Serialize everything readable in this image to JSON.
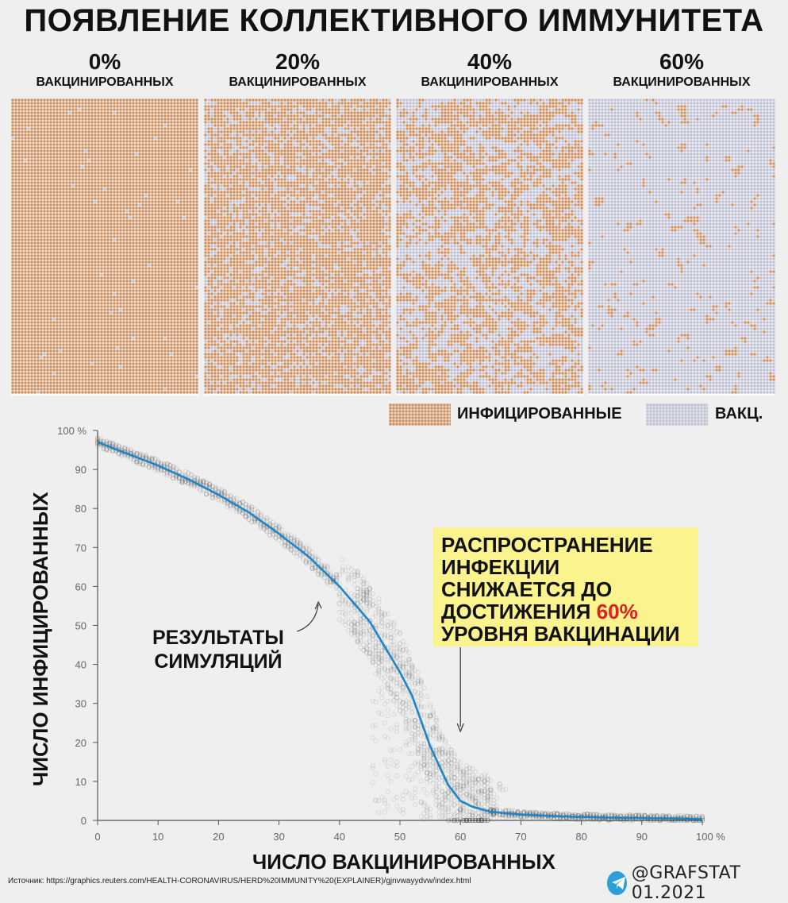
{
  "title": "ПОЯВЛЕНИЕ КОЛЛЕКТИВНОГО ИММУНИТЕТА",
  "panels": [
    {
      "pct": "0%",
      "label": "ВАКЦИНИРОВАННЫХ",
      "vaccinated_share": 0.0
    },
    {
      "pct": "20%",
      "label": "ВАКЦИНИРОВАННЫХ",
      "vaccinated_share": 0.2
    },
    {
      "pct": "40%",
      "label": "ВАКЦИНИРОВАННЫХ",
      "vaccinated_share": 0.4
    },
    {
      "pct": "60%",
      "label": "ВАКЦИНИРОВАННЫХ",
      "vaccinated_share": 0.6
    }
  ],
  "legend": {
    "infected": "ИНФИЦИРОВАННЫЕ",
    "vaccinated": "ВАКЦ."
  },
  "colors": {
    "infected": "#c8814a",
    "vaccinated": "#b9b9cf",
    "curve": "#1e86c8",
    "highlight": "#fbf48e",
    "accent_red": "#e02020",
    "background": "#efefef"
  },
  "annotation": {
    "text": "РАСПРОСТРАНЕНИЕ\nИНФЕКЦИИ\nСНИЖАЕТСЯ ДО\nДОСТИЖЕНИЯ ",
    "highlight": "60%",
    "text_end": "\nУРОВНЯ ВАКЦИНАЦИИ"
  },
  "sim_label": "РЕЗУЛЬТАТЫ\nСИМУЛЯЦИЙ",
  "source": "Источник: https://graphics.reuters.com/HEALTH-CORONAVIRUS/HERD%20IMMUNITY%20(EXPLAINER)/gjnvwayydvw/index.html",
  "brand": "@GRAFSTAT 01.2021",
  "chart_data": {
    "type": "line",
    "xlabel": "ЧИСЛО ВАКЦИНИРОВАННЫХ",
    "ylabel": "ЧИСЛО ИНФИЦИРОВАННЫХ",
    "xlim": [
      0,
      100
    ],
    "ylim": [
      0,
      100
    ],
    "x_ticks": [
      "0",
      "10",
      "20",
      "30",
      "40",
      "50",
      "60",
      "70",
      "80",
      "90",
      "100 %"
    ],
    "y_ticks": [
      "0",
      "10",
      "20",
      "30",
      "40",
      "50",
      "60",
      "70",
      "80",
      "90",
      "100 %"
    ],
    "grid": false,
    "series": [
      {
        "x": [
          0,
          5,
          10,
          15,
          20,
          25,
          30,
          35,
          40,
          45,
          50,
          52,
          55,
          58,
          60,
          62,
          65,
          70,
          75,
          80,
          85,
          90,
          95,
          100
        ],
        "y": [
          97,
          94,
          91,
          87.5,
          83.5,
          79,
          73.5,
          67.5,
          60,
          51,
          38,
          32,
          19,
          9,
          5,
          3.5,
          2.2,
          1.5,
          1.1,
          0.9,
          0.7,
          0.6,
          0.5,
          0.3
        ]
      }
    ]
  }
}
